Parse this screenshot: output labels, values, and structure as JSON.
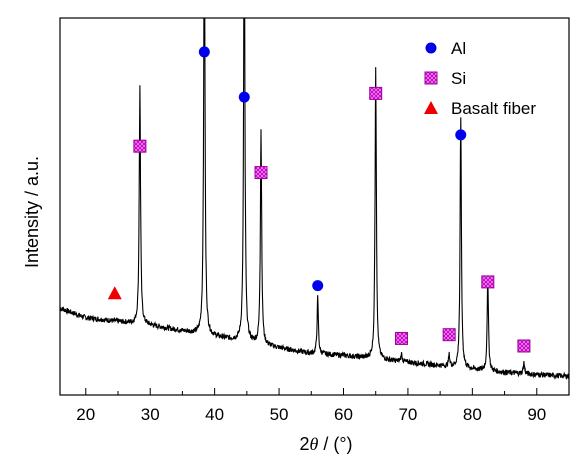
{
  "chart_data": {
    "type": "line",
    "xlabel_prefix": "2",
    "xlabel_symbol": "θ",
    "xlabel_suffix": " / (°)",
    "ylabel": "Intensity / a.u.",
    "xlim": [
      16,
      95
    ],
    "ylim": [
      0,
      100
    ],
    "x_ticks": [
      20,
      30,
      40,
      50,
      60,
      70,
      80,
      90
    ],
    "y_ticks_shown": false,
    "grid": false,
    "legend_position": "top-right",
    "legend": [
      {
        "label": "Al",
        "marker": "circle",
        "color": "#0000ee"
      },
      {
        "label": "Si",
        "marker": "hatched-square",
        "color": "#ff66ff"
      },
      {
        "label": "Basalt fiber",
        "marker": "triangle",
        "color": "#ee0000"
      }
    ],
    "series": [
      {
        "color": "#000000",
        "background": [
          [
            16,
            23
          ],
          [
            20,
            20.5
          ],
          [
            25,
            19.5
          ],
          [
            30,
            18.5
          ],
          [
            35,
            17
          ],
          [
            40,
            15.5
          ],
          [
            45,
            14
          ],
          [
            50,
            12.5
          ],
          [
            55,
            11
          ],
          [
            60,
            10.5
          ],
          [
            65,
            9.5
          ],
          [
            70,
            8.7
          ],
          [
            75,
            7.8
          ],
          [
            80,
            6.8
          ],
          [
            85,
            6
          ],
          [
            90,
            5.4
          ],
          [
            95,
            5
          ]
        ],
        "peaks": [
          {
            "x": 28.4,
            "height": 63
          },
          {
            "x": 38.4,
            "height": 115
          },
          {
            "x": 44.6,
            "height": 115
          },
          {
            "x": 47.2,
            "height": 57
          },
          {
            "x": 56.0,
            "height": 15
          },
          {
            "x": 65.0,
            "height": 78
          },
          {
            "x": 69.0,
            "height": 2
          },
          {
            "x": 76.4,
            "height": 3
          },
          {
            "x": 78.2,
            "height": 66
          },
          {
            "x": 82.4,
            "height": 25
          },
          {
            "x": 88.0,
            "height": 3
          }
        ]
      }
    ],
    "markers": [
      {
        "phase": "Al",
        "x": 38.4,
        "y": 91
      },
      {
        "phase": "Al",
        "x": 44.6,
        "y": 79
      },
      {
        "phase": "Al",
        "x": 56.0,
        "y": 29
      },
      {
        "phase": "Al",
        "x": 78.2,
        "y": 69
      },
      {
        "phase": "Si",
        "x": 28.4,
        "y": 66
      },
      {
        "phase": "Si",
        "x": 47.2,
        "y": 59
      },
      {
        "phase": "Si",
        "x": 65.0,
        "y": 80
      },
      {
        "phase": "Si",
        "x": 69.0,
        "y": 15
      },
      {
        "phase": "Si",
        "x": 76.4,
        "y": 16
      },
      {
        "phase": "Si",
        "x": 82.4,
        "y": 30
      },
      {
        "phase": "Si",
        "x": 88.0,
        "y": 13
      },
      {
        "phase": "Basalt fiber",
        "x": 24.5,
        "y": 27
      }
    ]
  }
}
